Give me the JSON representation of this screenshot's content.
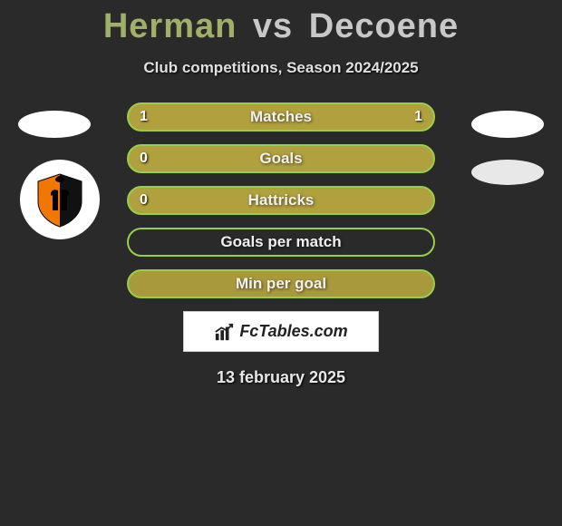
{
  "title": {
    "left": "Herman",
    "vs": "vs",
    "right": "Decoene"
  },
  "subtitle": "Club competitions, Season 2024/2025",
  "colors": {
    "row_fill": "#b0a03e",
    "row_border": "#96d04a",
    "row_fill_light": "#a89a3c"
  },
  "rows": [
    {
      "label": "Matches",
      "left": "1",
      "right": "1",
      "filled": true
    },
    {
      "label": "Goals",
      "left": "0",
      "right": "",
      "filled": true
    },
    {
      "label": "Hattricks",
      "left": "0",
      "right": "",
      "filled": true
    },
    {
      "label": "Goals per match",
      "left": "",
      "right": "",
      "filled": false
    },
    {
      "label": "Min per goal",
      "left": "",
      "right": "",
      "filled": true
    }
  ],
  "footer_brand": "FcTables.com",
  "date": "13 february 2025",
  "club_badge": {
    "bg_left": "#f07800",
    "bg_right": "#111111",
    "border": "#f07800"
  }
}
